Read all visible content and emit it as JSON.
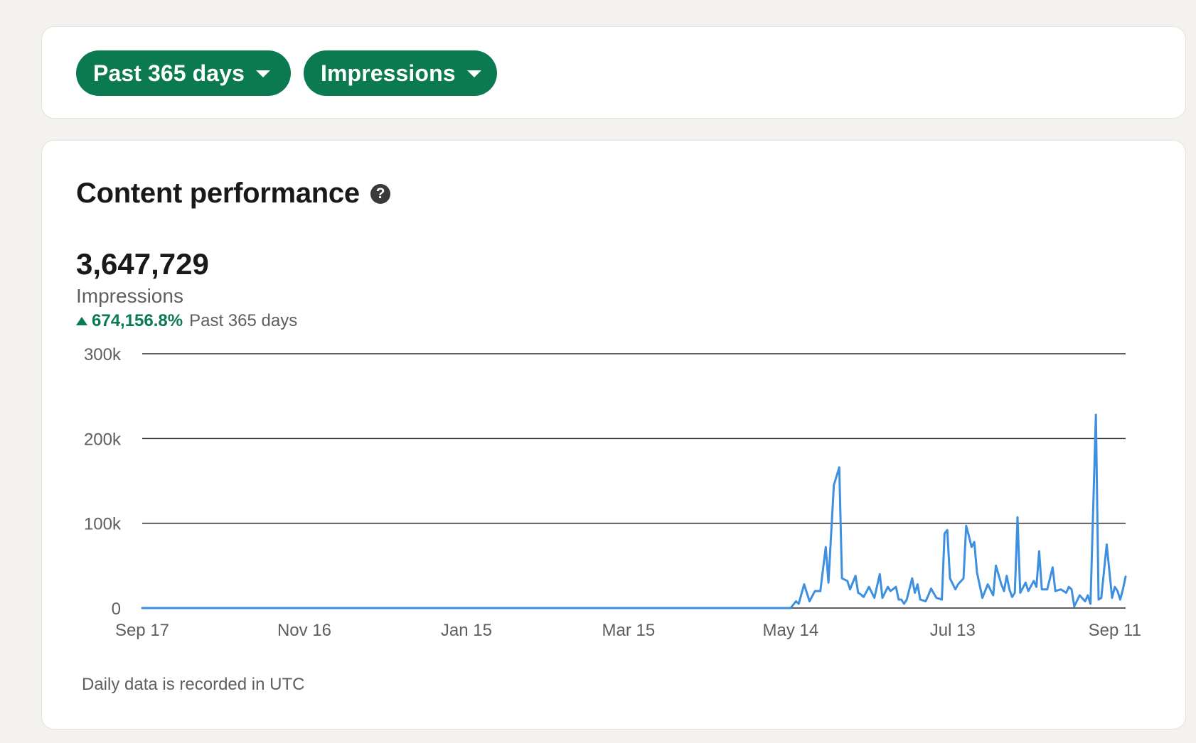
{
  "filters": {
    "range_label": "Past 365 days",
    "metric_label": "Impressions"
  },
  "card": {
    "title": "Content performance",
    "help_icon": "question-circle-icon",
    "total": "3,647,729",
    "metric": "Impressions",
    "change": "674,156.8%",
    "change_period": "Past 365 days",
    "footnote": "Daily data is recorded in UTC"
  },
  "colors": {
    "accent": "#0b7a50",
    "line": "#3d8fe0"
  },
  "chart_data": {
    "type": "line",
    "title": "",
    "xlabel": "",
    "ylabel": "",
    "ylim": [
      0,
      300000
    ],
    "y_ticks": [
      0,
      100000,
      200000,
      300000
    ],
    "y_tick_labels": [
      "0",
      "100k",
      "200k",
      "300k"
    ],
    "x_tick_labels": [
      "Sep 17",
      "Nov 16",
      "Jan 15",
      "Mar 15",
      "May 14",
      "Jul 13",
      "Sep 11"
    ],
    "x_tick_days": [
      0,
      60,
      120,
      180,
      240,
      300,
      360
    ],
    "x_range": [
      0,
      364
    ],
    "grid": true,
    "legend": "none",
    "series": [
      {
        "x": [
          0,
          240,
          242,
          243,
          245,
          247,
          249,
          251,
          253,
          254,
          256,
          258,
          259,
          261,
          262,
          264,
          265,
          266,
          267,
          269,
          271,
          273,
          274,
          276,
          277,
          279,
          280,
          281,
          282,
          283,
          285,
          286,
          287,
          288,
          290,
          291,
          292,
          294,
          296,
          297,
          298,
          299,
          301,
          302,
          304,
          305,
          306,
          307,
          308,
          309,
          311,
          313,
          315,
          316,
          318,
          319,
          320,
          321,
          322,
          323,
          324,
          325,
          327,
          328,
          330,
          331,
          332,
          333,
          335,
          337,
          338,
          340,
          342,
          343,
          344,
          345,
          347,
          349,
          350,
          351,
          353,
          354,
          355,
          357,
          359,
          360,
          361,
          362,
          363,
          364
        ],
        "y": [
          0,
          0,
          8000,
          5000,
          28000,
          8000,
          20000,
          20000,
          72000,
          30000,
          145000,
          166000,
          35000,
          32000,
          22000,
          38000,
          18000,
          16000,
          13000,
          25000,
          12000,
          40000,
          12000,
          25000,
          20000,
          25000,
          10000,
          10000,
          5000,
          10000,
          35000,
          18000,
          28000,
          10000,
          8000,
          15000,
          23000,
          12000,
          10000,
          88000,
          92000,
          35000,
          22000,
          28000,
          35000,
          97000,
          85000,
          72000,
          78000,
          42000,
          12000,
          28000,
          15000,
          50000,
          28000,
          20000,
          38000,
          22000,
          13000,
          18000,
          107000,
          18000,
          30000,
          20000,
          32000,
          25000,
          67000,
          22000,
          22000,
          48000,
          20000,
          22000,
          18000,
          25000,
          22000,
          2000,
          15000,
          8000,
          15000,
          5000,
          228000,
          10000,
          12000,
          75000,
          12000,
          25000,
          20000,
          10000,
          22000,
          37000
        ]
      }
    ]
  }
}
